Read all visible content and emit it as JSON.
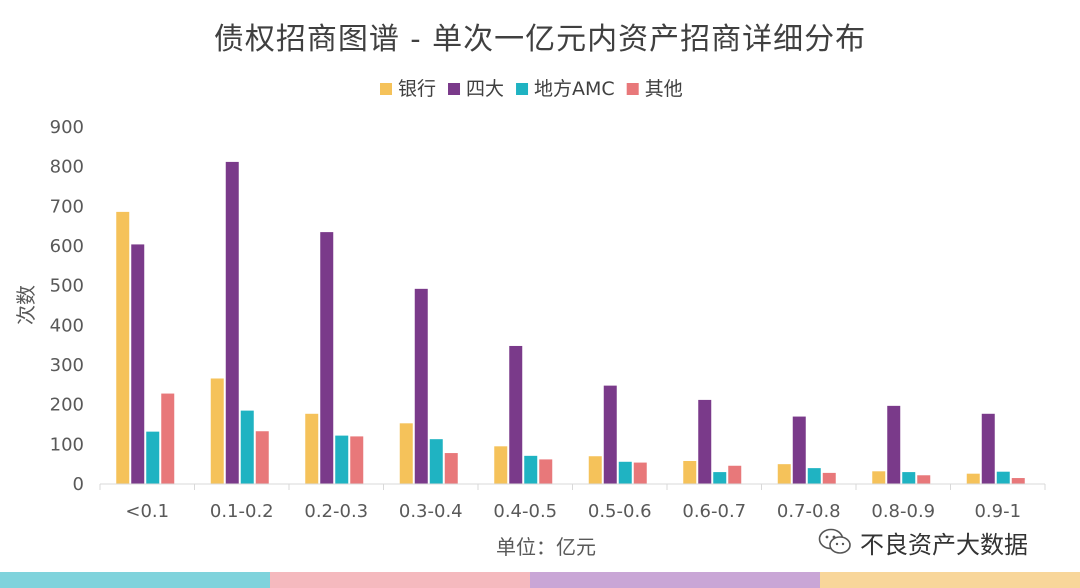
{
  "chart_data": {
    "type": "bar",
    "title": "债权招商图谱 - 单次一亿元内资产招商详细分布",
    "xlabel": "单位：亿元",
    "ylabel": "次数",
    "ylim": [
      0,
      900
    ],
    "yticks": [
      0,
      100,
      200,
      300,
      400,
      500,
      600,
      700,
      800,
      900
    ],
    "grid": false,
    "legend_position": "top-center",
    "categories": [
      "<0.1",
      "0.1-0.2",
      "0.2-0.3",
      "0.3-0.4",
      "0.4-0.5",
      "0.5-0.6",
      "0.6-0.7",
      "0.7-0.8",
      "0.8-0.9",
      "0.9-1"
    ],
    "series": [
      {
        "name": "银行",
        "color": "#F5C25A",
        "values": [
          686,
          266,
          177,
          153,
          95,
          70,
          58,
          50,
          32,
          26
        ]
      },
      {
        "name": "四大",
        "color": "#7A3A8A",
        "values": [
          604,
          812,
          635,
          492,
          348,
          248,
          212,
          170,
          197,
          177
        ]
      },
      {
        "name": "地方AMC",
        "color": "#1FB3C2",
        "values": [
          132,
          185,
          122,
          113,
          71,
          56,
          30,
          40,
          30,
          31
        ]
      },
      {
        "name": "其他",
        "color": "#E8787A",
        "values": [
          228,
          133,
          120,
          78,
          62,
          54,
          46,
          28,
          22,
          15
        ]
      }
    ]
  },
  "watermark": {
    "text": "不良资产大数据",
    "icon": "wechat-icon"
  },
  "footer": {
    "colors": [
      "#7FD3DC",
      "#F5B9BE",
      "#C9A6D6",
      "#F8D69A"
    ]
  }
}
